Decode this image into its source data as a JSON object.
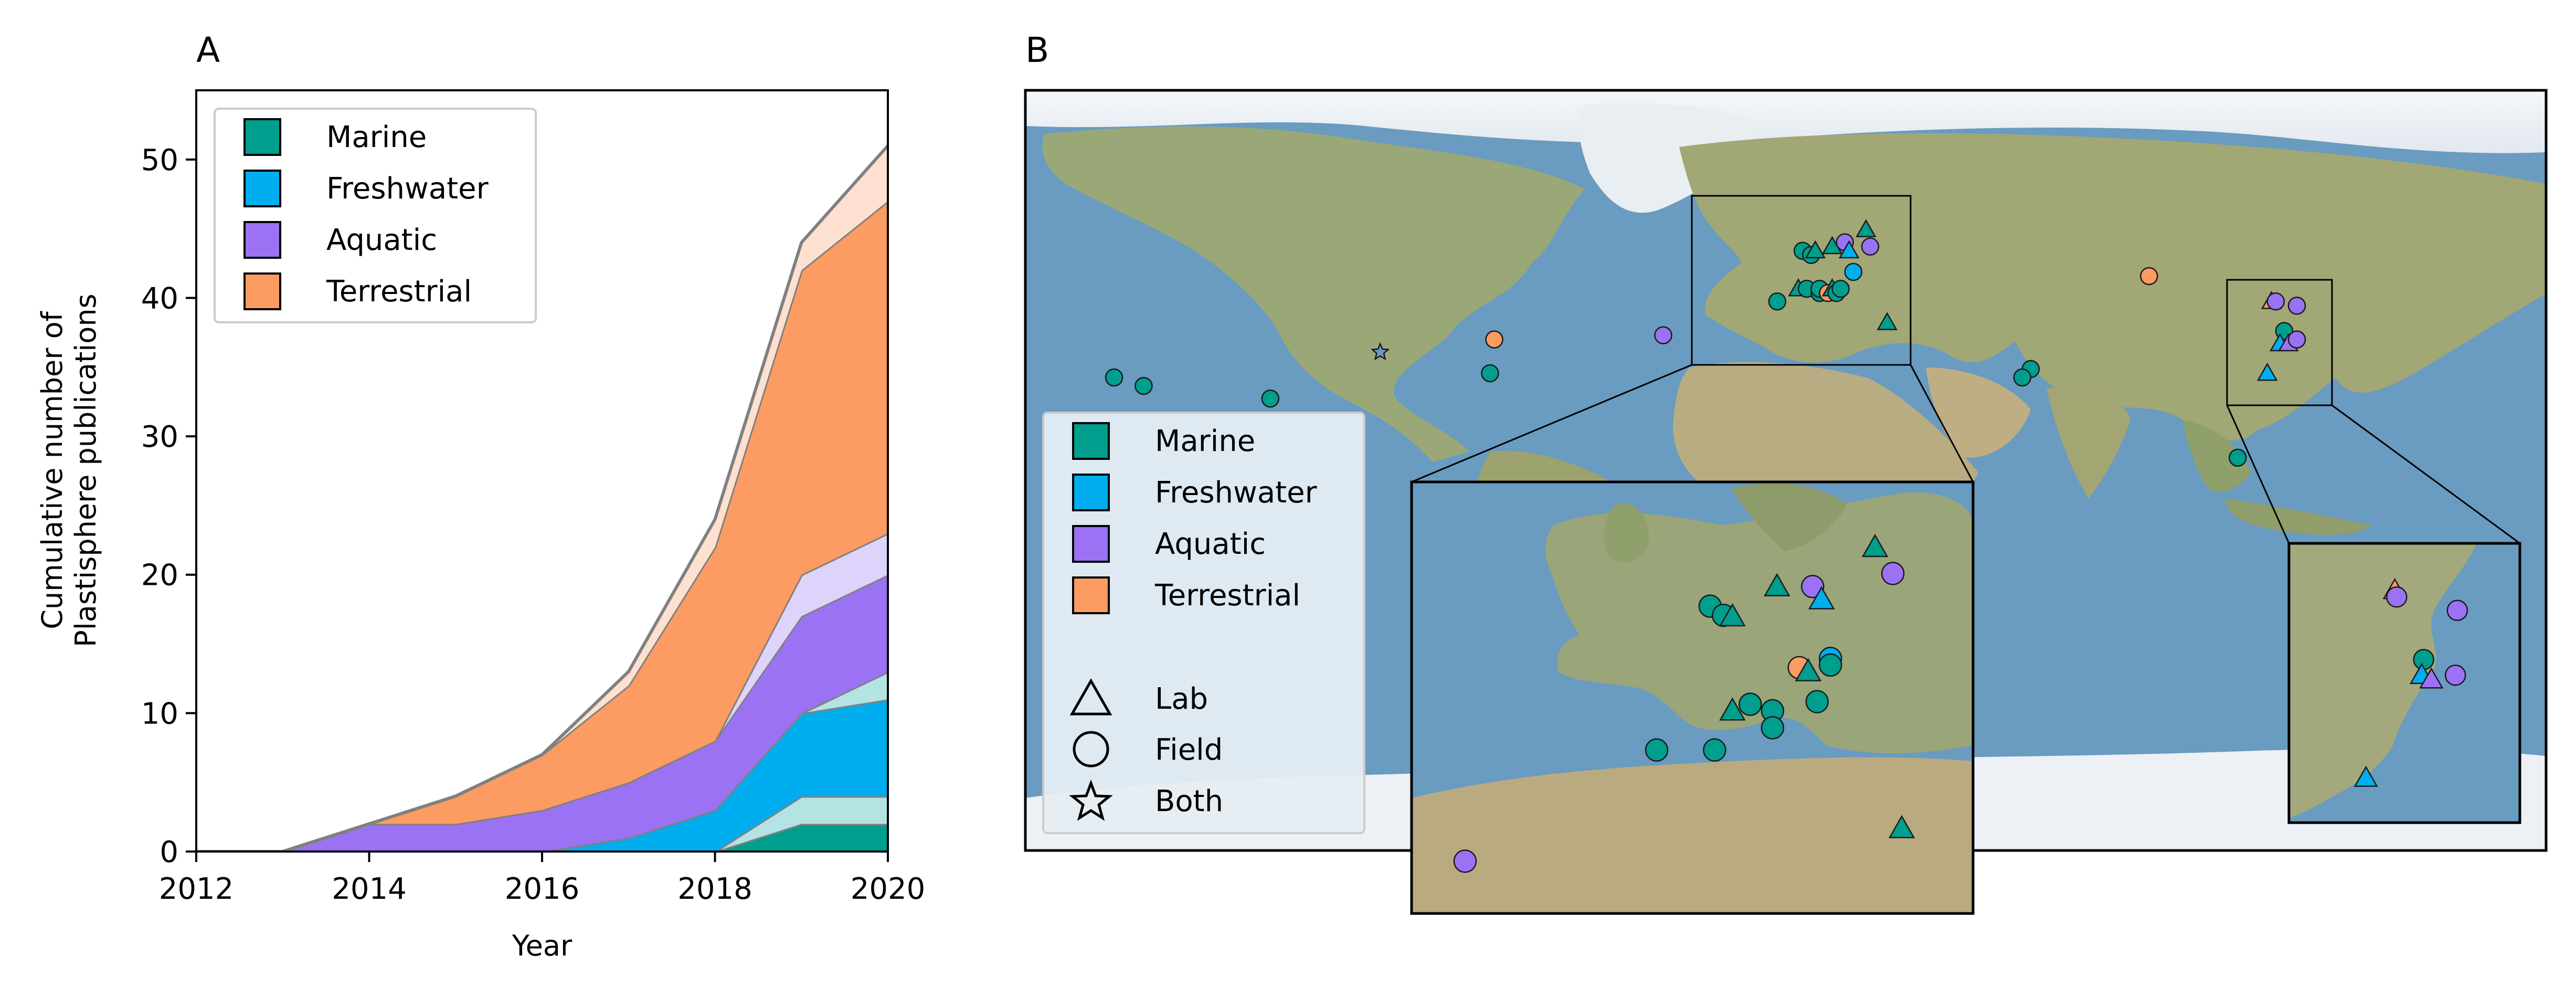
{
  "panels": {
    "a": "A",
    "b": "B"
  },
  "colors": {
    "marine": "#009e8c",
    "freshwater": "#00aeef",
    "aquatic": "#9b72f4",
    "terrestrial": "#fc9b62",
    "marine_light": "#b3e3e2",
    "aquatic_light": "#ddd3fb",
    "terrestrial_light": "#fde0d0",
    "edge": "#808080",
    "ocean": "#6f9cc0",
    "land": "#9aa57e"
  },
  "chart_data": [
    {
      "type": "area",
      "panel": "A",
      "title": "",
      "xlabel": "Year",
      "ylabel": "Cumulative number of Plastisphere publications",
      "ylabel_lines": [
        "Cumulative number of",
        "Plastisphere publications"
      ],
      "xlim": [
        2012,
        2020
      ],
      "ylim": [
        0,
        55
      ],
      "xticks": [
        2012,
        2014,
        2016,
        2018,
        2020
      ],
      "yticks": [
        0,
        10,
        20,
        30,
        40,
        50
      ],
      "x": [
        2012,
        2013,
        2014,
        2015,
        2016,
        2017,
        2018,
        2019,
        2020
      ],
      "grid": false,
      "legend_position": "top-left",
      "series": [
        {
          "name": "Marine",
          "values": [
            0,
            0,
            0,
            0,
            0,
            0,
            0,
            2,
            2
          ],
          "style": "solid",
          "colorKey": "marine"
        },
        {
          "values": [
            0,
            0,
            0,
            0,
            0,
            0,
            0,
            2,
            2
          ],
          "style": "light",
          "colorKey": "marine_light"
        },
        {
          "name": "Freshwater",
          "values": [
            0,
            0,
            0,
            0,
            0,
            1,
            3,
            6,
            7
          ],
          "style": "solid",
          "colorKey": "freshwater"
        },
        {
          "values": [
            0,
            0,
            0,
            0,
            0,
            0,
            0,
            0,
            2
          ],
          "style": "light",
          "colorKey": "marine_light"
        },
        {
          "name": "Aquatic",
          "values": [
            0,
            0,
            2,
            2,
            3,
            4,
            5,
            7,
            7
          ],
          "style": "solid",
          "colorKey": "aquatic"
        },
        {
          "values": [
            0,
            0,
            0,
            0,
            0,
            0,
            0,
            3,
            3
          ],
          "style": "light",
          "colorKey": "aquatic_light"
        },
        {
          "name": "Terrestrial",
          "values": [
            0,
            0,
            0,
            2,
            4,
            7,
            14,
            22,
            24
          ],
          "style": "solid",
          "colorKey": "terrestrial"
        },
        {
          "values": [
            0,
            0,
            0,
            0,
            0,
            1,
            2,
            2,
            4
          ],
          "style": "light",
          "colorKey": "terrestrial_light"
        }
      ],
      "legend": [
        {
          "label": "Marine",
          "colorKey": "marine"
        },
        {
          "label": "Freshwater",
          "colorKey": "freshwater"
        },
        {
          "label": "Aquatic",
          "colorKey": "aquatic"
        },
        {
          "label": "Terrestrial",
          "colorKey": "terrestrial"
        }
      ]
    },
    {
      "type": "scatter",
      "panel": "B",
      "title": "",
      "map": true,
      "grid": false,
      "legend_position": "center-left",
      "legend_colors": [
        {
          "label": "Marine",
          "colorKey": "marine"
        },
        {
          "label": "Freshwater",
          "colorKey": "freshwater"
        },
        {
          "label": "Aquatic",
          "colorKey": "aquatic"
        },
        {
          "label": "Terrestrial",
          "colorKey": "terrestrial"
        }
      ],
      "legend_shapes": [
        {
          "label": "Lab",
          "shape": "triangle"
        },
        {
          "label": "Field",
          "shape": "circle"
        },
        {
          "label": "Both",
          "shape": "star"
        }
      ],
      "points": [
        {
          "lon": -159,
          "lat": 22,
          "type": "marine",
          "method": "field"
        },
        {
          "lon": -152,
          "lat": 20,
          "type": "marine",
          "method": "field"
        },
        {
          "lon": -122,
          "lat": 17,
          "type": "marine",
          "method": "field"
        },
        {
          "lon": -96,
          "lat": 28,
          "type": "both",
          "method": "both"
        },
        {
          "lon": -70,
          "lat": 23,
          "type": "marine",
          "method": "field"
        },
        {
          "lon": -69,
          "lat": 31,
          "type": "terrestrial",
          "method": "field"
        },
        {
          "lon": -2,
          "lat": 40,
          "type": "marine",
          "method": "field"
        },
        {
          "lon": 4,
          "lat": 52,
          "type": "marine",
          "method": "field"
        },
        {
          "lon": 6,
          "lat": 51,
          "type": "marine",
          "method": "field"
        },
        {
          "lon": 7,
          "lat": 52,
          "type": "marine",
          "method": "lab"
        },
        {
          "lon": 3,
          "lat": 43,
          "type": "marine",
          "method": "lab"
        },
        {
          "lon": 5,
          "lat": 43,
          "type": "marine",
          "method": "field"
        },
        {
          "lon": 8,
          "lat": 42,
          "type": "marine",
          "method": "field"
        },
        {
          "lon": 8,
          "lat": 43,
          "type": "marine",
          "method": "field"
        },
        {
          "lon": 10,
          "lat": 42,
          "type": "terrestrial",
          "method": "field"
        },
        {
          "lon": 11,
          "lat": 43,
          "type": "marine",
          "method": "lab"
        },
        {
          "lon": 12,
          "lat": 42,
          "type": "marine",
          "method": "field"
        },
        {
          "lon": 13,
          "lat": 43,
          "type": "marine",
          "method": "field"
        },
        {
          "lon": 11,
          "lat": 53,
          "type": "marine",
          "method": "lab"
        },
        {
          "lon": 14,
          "lat": 54,
          "type": "aquatic",
          "method": "field"
        },
        {
          "lon": 15,
          "lat": 52,
          "type": "freshwater",
          "method": "lab"
        },
        {
          "lon": 16,
          "lat": 47,
          "type": "freshwater",
          "method": "field"
        },
        {
          "lon": 19,
          "lat": 57,
          "type": "marine",
          "method": "lab"
        },
        {
          "lon": 20,
          "lat": 53,
          "type": "aquatic",
          "method": "field"
        },
        {
          "lon": -29,
          "lat": 32,
          "type": "aquatic",
          "method": "field"
        },
        {
          "lon": 24,
          "lat": 35,
          "type": "marine",
          "method": "lab"
        },
        {
          "lon": 58,
          "lat": 24,
          "type": "marine",
          "method": "field"
        },
        {
          "lon": 56,
          "lat": 22,
          "type": "marine",
          "method": "field"
        },
        {
          "lon": 86,
          "lat": 46,
          "type": "terrestrial",
          "method": "field"
        },
        {
          "lon": 107,
          "lat": 3,
          "type": "marine",
          "method": "field"
        },
        {
          "lon": 115,
          "lat": 40,
          "type": "terrestrial",
          "method": "lab"
        },
        {
          "lon": 116,
          "lat": 40,
          "type": "aquatic",
          "method": "field"
        },
        {
          "lon": 121,
          "lat": 39,
          "type": "aquatic",
          "method": "field"
        },
        {
          "lon": 118,
          "lat": 33,
          "type": "marine",
          "method": "field"
        },
        {
          "lon": 117,
          "lat": 30,
          "type": "freshwater",
          "method": "lab"
        },
        {
          "lon": 119,
          "lat": 30,
          "type": "aquatic",
          "method": "lab"
        },
        {
          "lon": 121,
          "lat": 31,
          "type": "aquatic",
          "method": "field"
        },
        {
          "lon": 114,
          "lat": 23,
          "type": "freshwater",
          "method": "lab"
        }
      ],
      "inset_europe": {
        "lon_range": [
          -30,
          33
        ],
        "lat_range": [
          28,
          61
        ],
        "points": [
          {
            "lon": -2.5,
            "lat": 40.5,
            "type": "marine",
            "method": "field"
          },
          {
            "lon": 3.5,
            "lat": 51.5,
            "type": "marine",
            "method": "field"
          },
          {
            "lon": 5.0,
            "lat": 50.8,
            "type": "marine",
            "method": "field"
          },
          {
            "lon": 6.0,
            "lat": 50.7,
            "type": "marine",
            "method": "lab"
          },
          {
            "lon": 11.0,
            "lat": 53.0,
            "type": "marine",
            "method": "lab"
          },
          {
            "lon": 15.0,
            "lat": 53.0,
            "type": "aquatic",
            "method": "field"
          },
          {
            "lon": 16.0,
            "lat": 52.0,
            "type": "freshwater",
            "method": "lab"
          },
          {
            "lon": 17.0,
            "lat": 47.5,
            "type": "freshwater",
            "method": "field"
          },
          {
            "lon": 22.0,
            "lat": 56.0,
            "type": "marine",
            "method": "lab"
          },
          {
            "lon": 24.0,
            "lat": 54.0,
            "type": "aquatic",
            "method": "field"
          },
          {
            "lon": 6.0,
            "lat": 43.5,
            "type": "marine",
            "method": "lab"
          },
          {
            "lon": 8.0,
            "lat": 44.0,
            "type": "marine",
            "method": "field"
          },
          {
            "lon": 4.0,
            "lat": 40.5,
            "type": "marine",
            "method": "field"
          },
          {
            "lon": 10.5,
            "lat": 43.5,
            "type": "marine",
            "method": "field"
          },
          {
            "lon": 10.5,
            "lat": 42.2,
            "type": "marine",
            "method": "field"
          },
          {
            "lon": 13.5,
            "lat": 46.8,
            "type": "terrestrial",
            "method": "field"
          },
          {
            "lon": 14.5,
            "lat": 46.5,
            "type": "marine",
            "method": "lab"
          },
          {
            "lon": 15.5,
            "lat": 44.2,
            "type": "marine",
            "method": "field"
          },
          {
            "lon": 17.0,
            "lat": 47.0,
            "type": "marine",
            "method": "field"
          },
          {
            "lon": 25.0,
            "lat": 34.5,
            "type": "marine",
            "method": "lab"
          },
          {
            "lon": -24.0,
            "lat": 32.0,
            "type": "aquatic",
            "method": "field"
          }
        ]
      },
      "inset_china": {
        "lon_range": [
          104,
          128
        ],
        "lat_range": [
          20,
          45
        ],
        "points": [
          {
            "lon": 115.0,
            "lat": 40.8,
            "type": "terrestrial",
            "method": "lab"
          },
          {
            "lon": 115.2,
            "lat": 40.2,
            "type": "aquatic",
            "method": "field"
          },
          {
            "lon": 121.5,
            "lat": 39.0,
            "type": "aquatic",
            "method": "field"
          },
          {
            "lon": 118.0,
            "lat": 34.6,
            "type": "marine",
            "method": "field"
          },
          {
            "lon": 117.8,
            "lat": 33.2,
            "type": "freshwater",
            "method": "lab"
          },
          {
            "lon": 118.8,
            "lat": 32.8,
            "type": "aquatic",
            "method": "lab"
          },
          {
            "lon": 121.3,
            "lat": 33.2,
            "type": "aquatic",
            "method": "field"
          },
          {
            "lon": 112.0,
            "lat": 24.0,
            "type": "freshwater",
            "method": "lab"
          }
        ]
      }
    }
  ]
}
